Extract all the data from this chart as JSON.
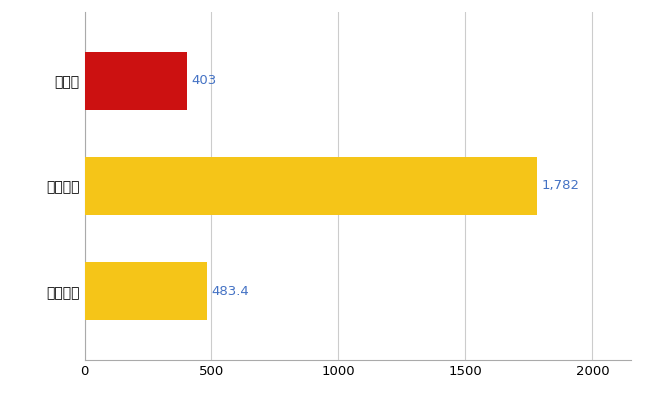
{
  "categories": [
    "群馬県",
    "全国最大",
    "全国平均"
  ],
  "values": [
    403,
    1782,
    483.4
  ],
  "bar_colors": [
    "#cc1111",
    "#f5c518",
    "#f5c518"
  ],
  "value_labels": [
    "403",
    "1,782",
    "483.4"
  ],
  "xlim": [
    0,
    2150
  ],
  "xticks": [
    0,
    500,
    1000,
    1500,
    2000
  ],
  "bar_height": 0.55,
  "label_color": "#4472c4",
  "background_color": "#ffffff",
  "grid_color": "#cccccc",
  "label_fontsize": 9.5,
  "tick_fontsize": 9.5,
  "ytick_fontsize": 10
}
